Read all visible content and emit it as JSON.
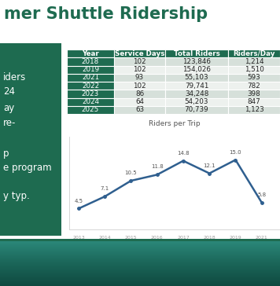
{
  "title": "mer Shuttle Ridership",
  "panel": {
    "lines": [
      "iders",
      "24",
      "ay",
      "re-",
      "p",
      "e program",
      "y typ."
    ]
  },
  "table": {
    "columns": [
      "Year",
      "Service Days",
      "Total Riders",
      "Riders/Day"
    ],
    "rows": [
      [
        "2018",
        "102",
        "123,846",
        "1,214"
      ],
      [
        "2019",
        "102",
        "154,026",
        "1,510"
      ],
      [
        "2021",
        "93",
        "55,103",
        "593"
      ],
      [
        "2022",
        "102",
        "79,741",
        "782"
      ],
      [
        "2023",
        "86",
        "34,248",
        "398"
      ],
      [
        "2024",
        "64",
        "54,203",
        "847"
      ],
      [
        "2025",
        "63",
        "70,739",
        "1,123"
      ]
    ]
  },
  "chart_data": {
    "type": "line",
    "title": "Riders per Trip",
    "categories": [
      "2013",
      "2014",
      "2015",
      "2016",
      "2017",
      "2018",
      "2019",
      "2021"
    ],
    "values": [
      4.5,
      7.1,
      10.5,
      11.8,
      14.8,
      12.1,
      15.0,
      5.8
    ],
    "color": "#2f5f8f",
    "marker": "o",
    "ylim": [
      0,
      20
    ],
    "data_labels": true,
    "tick_labels": "x"
  }
}
